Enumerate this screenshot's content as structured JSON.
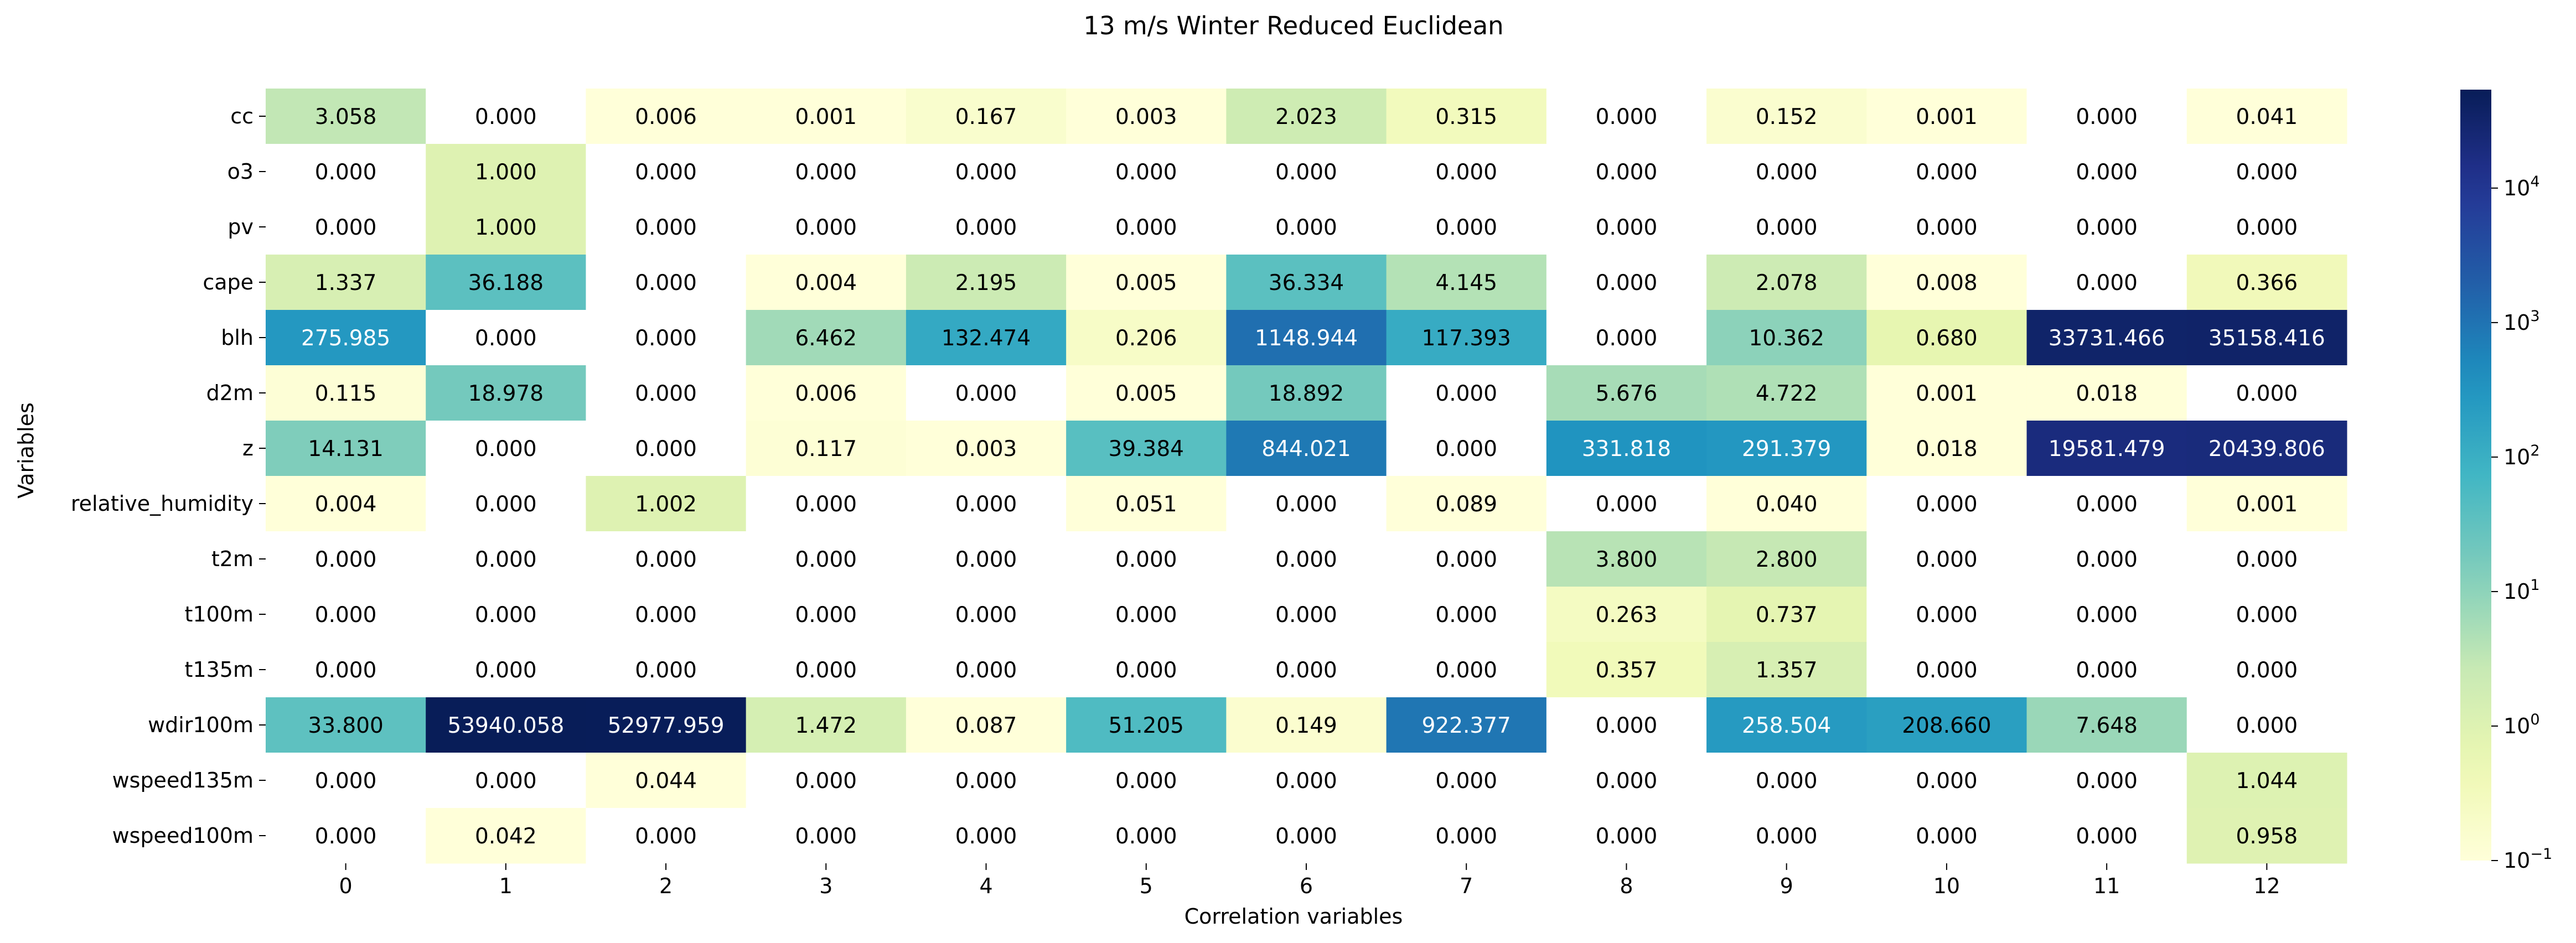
{
  "chart_data": {
    "type": "heatmap",
    "title": "13 m/s Winter Reduced Euclidean",
    "xlabel": "Correlation variables",
    "ylabel": "Variables",
    "x_categories": [
      "0",
      "1",
      "2",
      "3",
      "4",
      "5",
      "6",
      "7",
      "8",
      "9",
      "10",
      "11",
      "12"
    ],
    "y_categories": [
      "cc",
      "o3",
      "pv",
      "cape",
      "blh",
      "d2m",
      "z",
      "relative_humidity",
      "t2m",
      "t100m",
      "t135m",
      "wdir100m",
      "wspeed135m",
      "wspeed100m"
    ],
    "values": [
      [
        3.058,
        0.0,
        0.006,
        0.001,
        0.167,
        0.003,
        2.023,
        0.315,
        0.0,
        0.152,
        0.001,
        0.0,
        0.041
      ],
      [
        0.0,
        1.0,
        0.0,
        0.0,
        0.0,
        0.0,
        0.0,
        0.0,
        0.0,
        0.0,
        0.0,
        0.0,
        0.0
      ],
      [
        0.0,
        1.0,
        0.0,
        0.0,
        0.0,
        0.0,
        0.0,
        0.0,
        0.0,
        0.0,
        0.0,
        0.0,
        0.0
      ],
      [
        1.337,
        36.188,
        0.0,
        0.004,
        2.195,
        0.005,
        36.334,
        4.145,
        0.0,
        2.078,
        0.008,
        0.0,
        0.366
      ],
      [
        275.985,
        0.0,
        0.0,
        6.462,
        132.474,
        0.206,
        1148.944,
        117.393,
        0.0,
        10.362,
        0.68,
        33731.466,
        35158.416
      ],
      [
        0.115,
        18.978,
        0.0,
        0.006,
        0.0,
        0.005,
        18.892,
        0.0,
        5.676,
        4.722,
        0.001,
        0.018,
        0.0
      ],
      [
        14.131,
        0.0,
        0.0,
        0.117,
        0.003,
        39.384,
        844.021,
        0.0,
        331.818,
        291.379,
        0.018,
        19581.479,
        20439.806
      ],
      [
        0.004,
        0.0,
        1.002,
        0.0,
        0.0,
        0.051,
        0.0,
        0.089,
        0.0,
        0.04,
        0.0,
        0.0,
        0.001
      ],
      [
        0.0,
        0.0,
        0.0,
        0.0,
        0.0,
        0.0,
        0.0,
        0.0,
        3.8,
        2.8,
        0.0,
        0.0,
        0.0
      ],
      [
        0.0,
        0.0,
        0.0,
        0.0,
        0.0,
        0.0,
        0.0,
        0.0,
        0.263,
        0.737,
        0.0,
        0.0,
        0.0
      ],
      [
        0.0,
        0.0,
        0.0,
        0.0,
        0.0,
        0.0,
        0.0,
        0.0,
        0.357,
        1.357,
        0.0,
        0.0,
        0.0
      ],
      [
        33.8,
        53940.058,
        52977.959,
        1.472,
        0.087,
        51.205,
        0.149,
        922.377,
        0.0,
        258.504,
        208.66,
        7.648,
        0.0
      ],
      [
        0.0,
        0.0,
        0.044,
        0.0,
        0.0,
        0.0,
        0.0,
        0.0,
        0.0,
        0.0,
        0.0,
        0.0,
        1.044
      ],
      [
        0.0,
        0.042,
        0.0,
        0.0,
        0.0,
        0.0,
        0.0,
        0.0,
        0.0,
        0.0,
        0.0,
        0.0,
        0.958
      ]
    ],
    "value_format": "3 decimals",
    "color_scale": {
      "type": "log",
      "colormap": "YlGnBu",
      "min": 0.1,
      "max": 53940.058,
      "under_color": "#ffffff",
      "ticks": [
        {
          "base": "10",
          "exp": "−1",
          "value": 0.1
        },
        {
          "base": "10",
          "exp": "0",
          "value": 1
        },
        {
          "base": "10",
          "exp": "1",
          "value": 10
        },
        {
          "base": "10",
          "exp": "2",
          "value": 100
        },
        {
          "base": "10",
          "exp": "3",
          "value": 1000
        },
        {
          "base": "10",
          "exp": "4",
          "value": 10000
        }
      ]
    },
    "grid": false,
    "legend": "colorbar-right"
  }
}
